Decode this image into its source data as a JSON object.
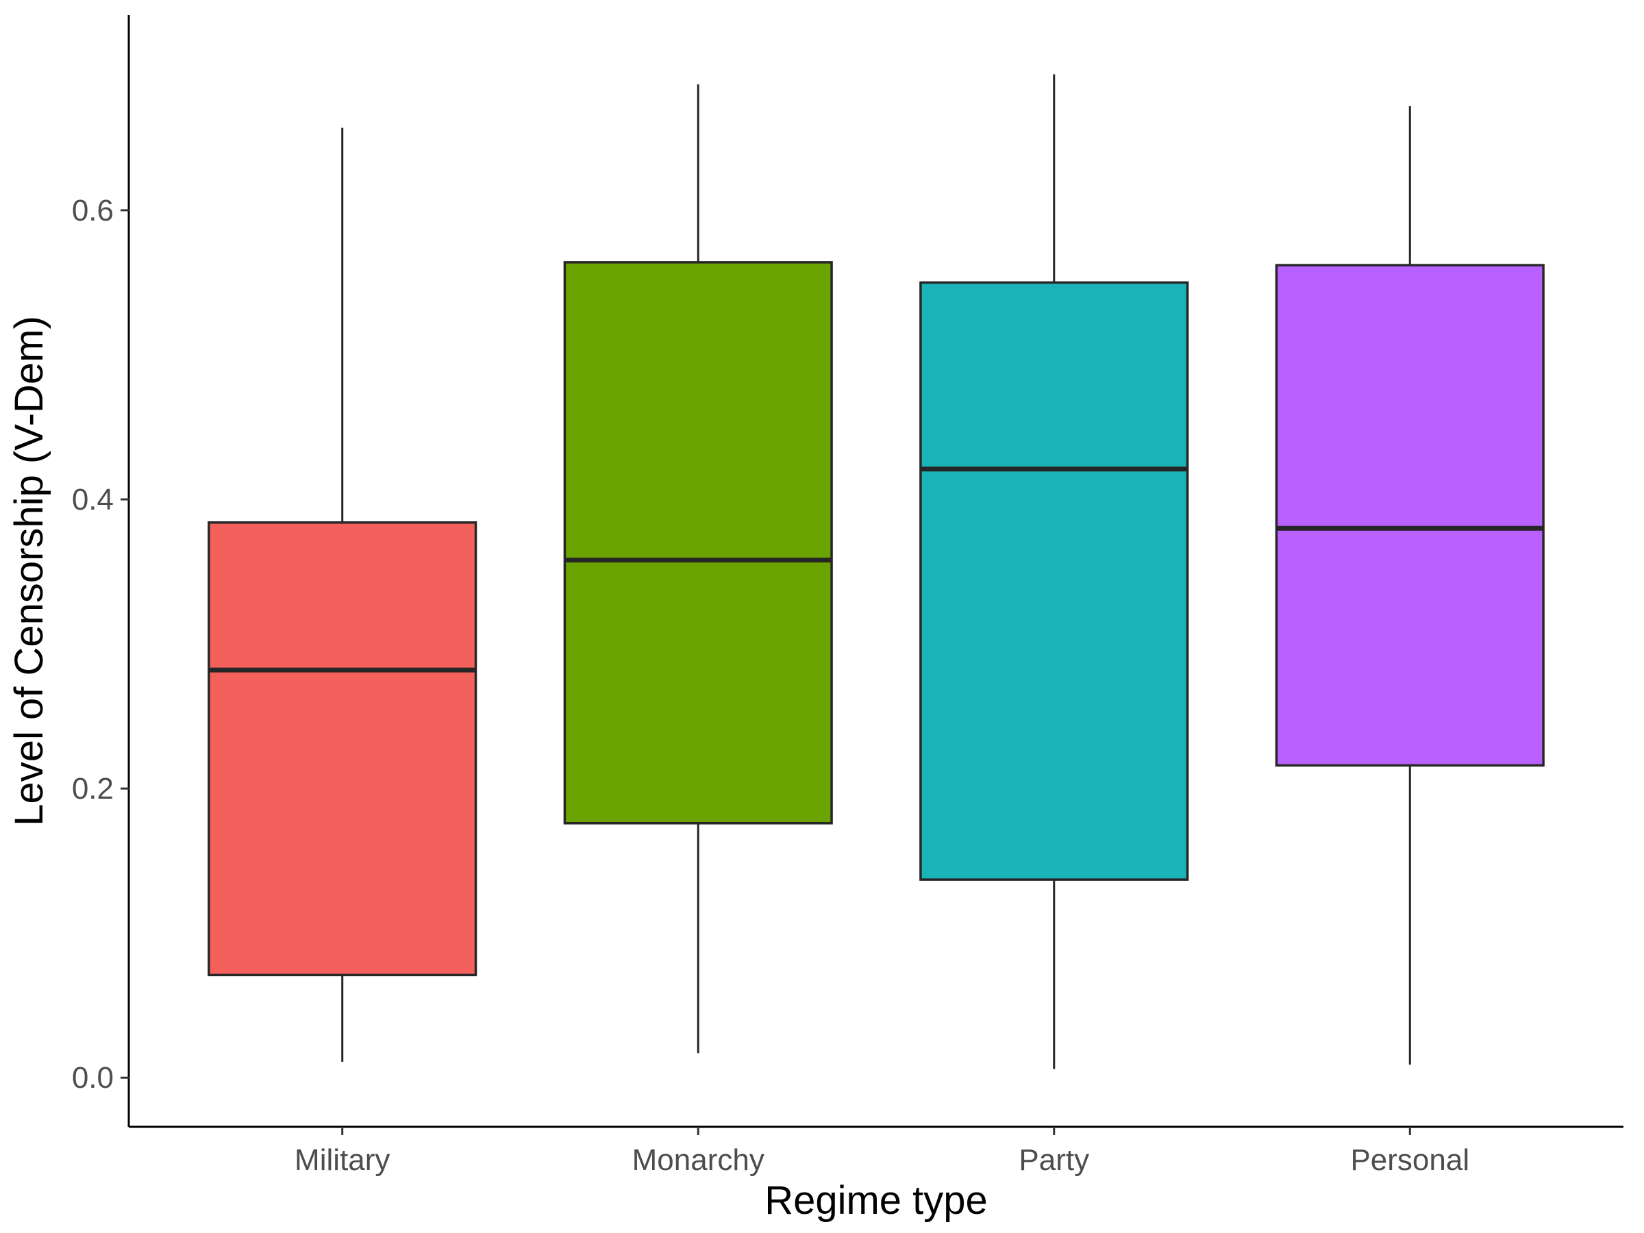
{
  "chart_data": {
    "type": "boxplot",
    "xlabel": "Regime type",
    "ylabel": "Level of Censorship (V-Dem)",
    "ylim": [
      -0.034,
      0.735
    ],
    "yticks": [
      0.0,
      0.2,
      0.4,
      0.6
    ],
    "ytick_labels": [
      "0.0",
      "0.2",
      "0.4",
      "0.6"
    ],
    "grid": false,
    "legend": "none",
    "categories": [
      "Military",
      "Monarchy",
      "Party",
      "Personal"
    ],
    "boxes": [
      {
        "category": "Military",
        "min": 0.011,
        "q1": 0.071,
        "median": 0.282,
        "q3": 0.384,
        "max": 0.657,
        "color": "#F4605C"
      },
      {
        "category": "Monarchy",
        "min": 0.017,
        "q1": 0.176,
        "median": 0.358,
        "q3": 0.564,
        "max": 0.687,
        "color": "#6BA301"
      },
      {
        "category": "Party",
        "min": 0.006,
        "q1": 0.137,
        "median": 0.421,
        "q3": 0.55,
        "max": 0.694,
        "color": "#1AB3B7"
      },
      {
        "category": "Personal",
        "min": 0.009,
        "q1": 0.216,
        "median": 0.38,
        "q3": 0.562,
        "max": 0.672,
        "color": "#B961FF"
      }
    ]
  }
}
